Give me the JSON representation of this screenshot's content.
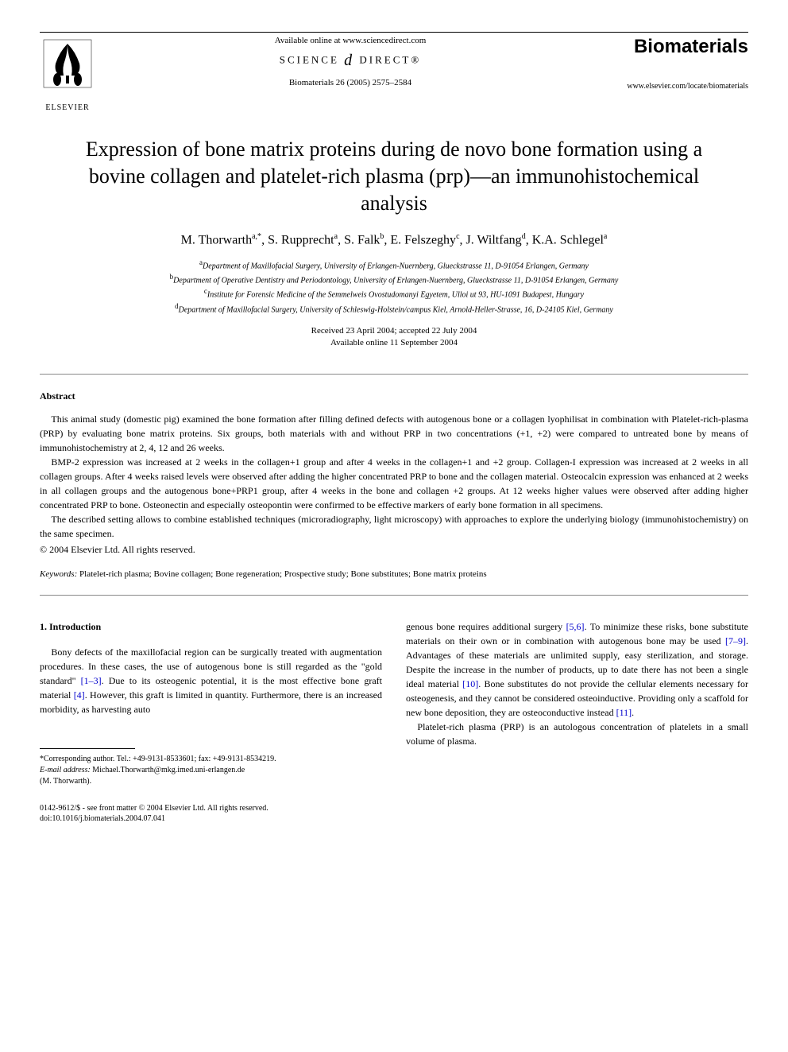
{
  "header": {
    "available_text": "Available online at www.sciencedirect.com",
    "sciencedirect_left": "SCIENCE",
    "sciencedirect_right": "DIRECT®",
    "journal_ref": "Biomaterials 26 (2005) 2575–2584",
    "journal_name": "Biomaterials",
    "journal_url": "www.elsevier.com/locate/biomaterials",
    "elsevier_label": "ELSEVIER"
  },
  "title": "Expression of bone matrix proteins during de novo bone formation using a bovine collagen and platelet-rich plasma (prp)—an immunohistochemical analysis",
  "authors_html": "M. Thorwarth<sup>a,*</sup>, S. Rupprecht<sup>a</sup>, S. Falk<sup>b</sup>, E. Felszeghy<sup>c</sup>, J. Wiltfang<sup>d</sup>, K.A. Schlegel<sup>a</sup>",
  "affiliations": {
    "a": "Department of Maxillofacial Surgery, University of Erlangen-Nuernberg, Glueckstrasse 11, D-91054 Erlangen, Germany",
    "b": "Department of Operative Dentistry and Periodontology, University of Erlangen-Nuernberg, Glueckstrasse 11, D-91054 Erlangen, Germany",
    "c": "Institute for Forensic Medicine of the Semmelweis Ovostudomanyi Egyetem, Ulloi ut 93, HU-1091 Budapest, Hungary",
    "d": "Department of Maxillofacial Surgery, University of Schleswig-Holstein/campus Kiel, Arnold-Heller-Strasse, 16, D-24105 Kiel, Germany"
  },
  "dates": {
    "received": "Received 23 April 2004; accepted 22 July 2004",
    "online": "Available online 11 September 2004"
  },
  "abstract": {
    "heading": "Abstract",
    "p1": "This animal study (domestic pig) examined the bone formation after filling defined defects with autogenous bone or a collagen lyophilisat in combination with Platelet-rich-plasma (PRP) by evaluating bone matrix proteins. Six groups, both materials with and without PRP in two concentrations (+1, +2) were compared to untreated bone by means of immunohistochemistry at 2, 4, 12 and 26 weeks.",
    "p2": "BMP-2 expression was increased at 2 weeks in the collagen+1 group and after 4 weeks in the collagen+1 and +2 group. Collagen-I expression was increased at 2 weeks in all collagen groups. After 4 weeks raised levels were observed after adding the higher concentrated PRP to bone and the collagen material. Osteocalcin expression was enhanced at 2 weeks in all collagen groups and the autogenous bone+PRP1 group, after 4 weeks in the bone and collagen +2 groups. At 12 weeks higher values were observed after adding higher concentrated PRP to bone. Osteonectin and especially osteopontin were confirmed to be effective markers of early bone formation in all specimens.",
    "p3": "The described setting allows to combine established techniques (microradiography, light microscopy) with approaches to explore the underlying biology (immunohistochemistry) on the same specimen.",
    "copyright": "© 2004 Elsevier Ltd. All rights reserved."
  },
  "keywords": {
    "label": "Keywords:",
    "text": "Platelet-rich plasma; Bovine collagen; Bone regeneration; Prospective study; Bone substitutes; Bone matrix proteins"
  },
  "introduction": {
    "heading": "1. Introduction",
    "col1_p1_pre": "Bony defects of the maxillofacial region can be surgically treated with augmentation procedures. In these cases, the use of autogenous bone is still regarded as the \"gold standard\" ",
    "ref1": "[1–3]",
    "col1_p1_mid": ". Due to its osteogenic potential, it is the most effective bone graft material ",
    "ref2": "[4]",
    "col1_p1_post": ". However, this graft is limited in quantity. Furthermore, there is an increased morbidity, as harvesting auto",
    "col2_p1_pre": "genous bone requires additional surgery ",
    "ref3": "[5,6]",
    "col2_p1_a": ". To minimize these risks, bone substitute materials on their own or in combination with autogenous bone may be used ",
    "ref4": "[7–9]",
    "col2_p1_b": ". Advantages of these materials are unlimited supply, easy sterilization, and storage. Despite the increase in the number of products, up to date there has not been a single ideal material ",
    "ref5": "[10]",
    "col2_p1_c": ". Bone substitutes do not provide the cellular elements necessary for osteogenesis, and they cannot be considered osteoinductive. Providing only a scaffold for new bone deposition, they are osteoconductive instead ",
    "ref6": "[11]",
    "col2_p1_d": ".",
    "col2_p2": "Platelet-rich plasma (PRP) is an autologous concentration of platelets in a small volume of plasma."
  },
  "footnotes": {
    "corr": "*Corresponding author. Tel.: +49-9131-8533601; fax: +49-9131-8534219.",
    "email_label": "E-mail address:",
    "email": "Michael.Thorwarth@mkg.imed.uni-erlangen.de",
    "email_person": "(M. Thorwarth)."
  },
  "footer": {
    "line1": "0142-9612/$ - see front matter © 2004 Elsevier Ltd. All rights reserved.",
    "line2": "doi:10.1016/j.biomaterials.2004.07.041"
  },
  "colors": {
    "text": "#000000",
    "background": "#ffffff",
    "link": "#0000cc",
    "divider": "#888888"
  },
  "typography": {
    "title_fontsize": 26,
    "authors_fontsize": 16,
    "body_fontsize": 12,
    "affiliation_fontsize": 10,
    "footnote_fontsize": 10,
    "font_family": "Georgia, Times New Roman, serif"
  }
}
